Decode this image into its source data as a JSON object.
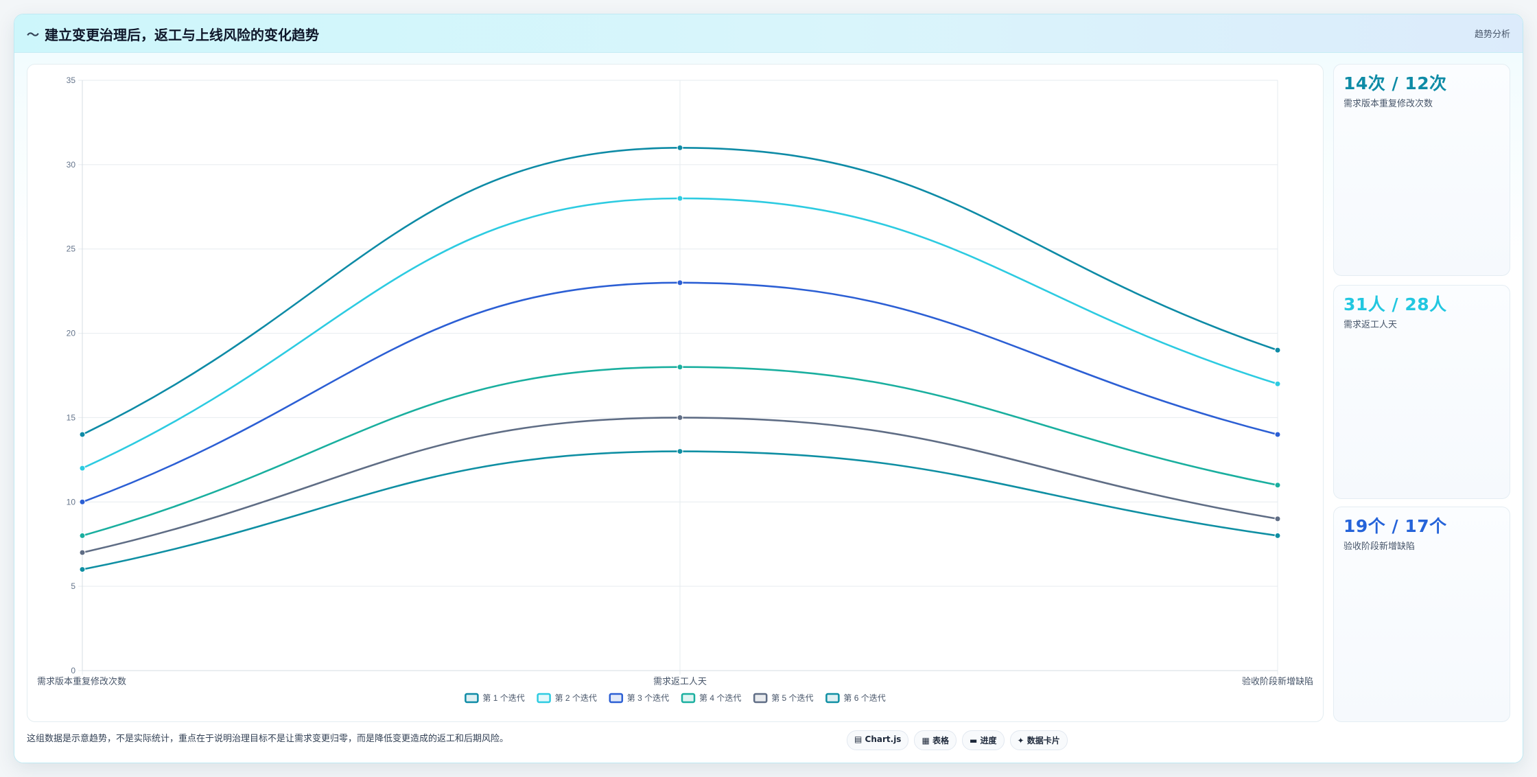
{
  "header": {
    "icon": "trend-icon",
    "icon_glyph": "〜",
    "title": "建立变更治理后，返工与上线风险的变化趋势",
    "tag": "趋势分析"
  },
  "stats": [
    {
      "value": "14次 / 12次",
      "label": "需求版本重复修改次数",
      "color": "#0e8ba6"
    },
    {
      "value": "31人 / 28人",
      "label": "需求返工人天",
      "color": "#22c7e0"
    },
    {
      "value": "19个 / 17个",
      "label": "验收阶段新增缺陷",
      "color": "#2563d9"
    }
  ],
  "footer": {
    "note": "这组数据是示意趋势，不是实际统计，重点在于说明治理目标不是让需求变更归零，而是降低变更造成的返工和后期风险。",
    "chips": [
      {
        "icon": "chart-icon",
        "glyph": "▤",
        "label": "Chart.js"
      },
      {
        "icon": "table-icon",
        "glyph": "▦",
        "label": "表格"
      },
      {
        "icon": "progress-icon",
        "glyph": "▬",
        "label": "进度"
      },
      {
        "icon": "card-icon",
        "glyph": "✦",
        "label": "数据卡片"
      }
    ]
  },
  "chart_data": {
    "type": "line",
    "categories": [
      "需求版本重复修改次数",
      "需求返工人天",
      "验收阶段新增缺陷"
    ],
    "ylim": [
      0,
      35
    ],
    "yticks": [
      0,
      5,
      10,
      15,
      20,
      25,
      30,
      35
    ],
    "grid": true,
    "legend": "bottom-center",
    "series": [
      {
        "name": "第 1 个迭代",
        "values": [
          14,
          31,
          19
        ],
        "color": "#0e8ba6"
      },
      {
        "name": "第 2 个迭代",
        "values": [
          12,
          28,
          17
        ],
        "color": "#2dcbe1"
      },
      {
        "name": "第 3 个迭代",
        "values": [
          10,
          23,
          14
        ],
        "color": "#2c5fd4"
      },
      {
        "name": "第 4 个迭代",
        "values": [
          8,
          18,
          11
        ],
        "color": "#1aaf9f"
      },
      {
        "name": "第 5 个迭代",
        "values": [
          7,
          15,
          9
        ],
        "color": "#5f6d85"
      },
      {
        "name": "第 6 个迭代",
        "values": [
          6,
          13,
          8
        ],
        "color": "#0f8fa3"
      }
    ]
  }
}
